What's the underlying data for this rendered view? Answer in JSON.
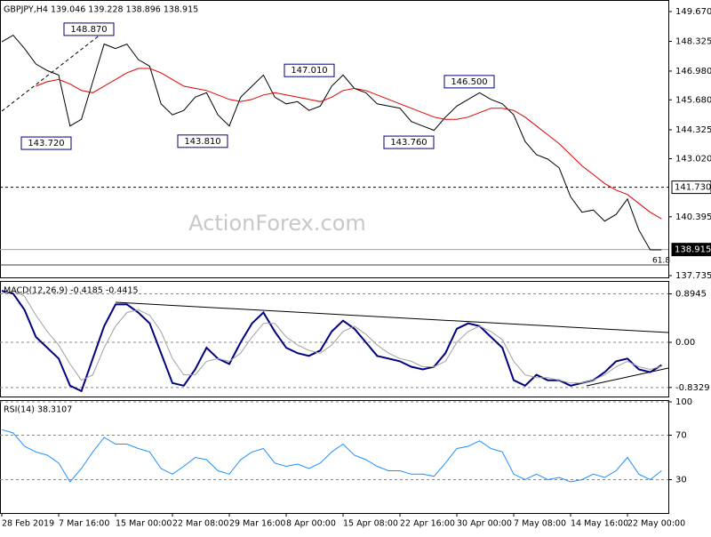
{
  "chart_data": [
    {
      "type": "line",
      "title": "GBPJPY,H4  139.046 139.228 138.896 138.915",
      "watermark": "ActionForex.com",
      "categories": [
        "28 Feb 2019",
        null,
        null,
        null,
        null,
        "7 Mar 16:00",
        null,
        null,
        null,
        null,
        "15 Mar 00:00",
        null,
        null,
        null,
        null,
        "22 Mar 08:00",
        null,
        null,
        null,
        null,
        "29 Mar 16:00",
        null,
        null,
        null,
        null,
        "8 Apr 00:00",
        null,
        null,
        null,
        null,
        "15 Apr 08:00",
        null,
        null,
        null,
        null,
        "22 Apr 16:00",
        null,
        null,
        null,
        null,
        "30 Apr 00:00",
        null,
        null,
        null,
        null,
        "7 May 08:00",
        null,
        null,
        null,
        null,
        "14 May 16:00",
        null,
        null,
        null,
        null,
        "22 May 00:00",
        null,
        null,
        null
      ],
      "series": [
        {
          "color": "#000000",
          "values": [
            148.3,
            148.6,
            148.0,
            147.3,
            147.0,
            146.8,
            144.5,
            144.8,
            146.5,
            148.2,
            148.0,
            148.2,
            147.5,
            147.2,
            145.5,
            145.0,
            145.2,
            145.8,
            146.0,
            145.0,
            144.5,
            145.8,
            146.3,
            146.8,
            145.8,
            145.5,
            145.6,
            145.2,
            145.4,
            146.3,
            146.8,
            146.2,
            146.0,
            145.5,
            145.4,
            145.3,
            144.7,
            144.5,
            144.3,
            144.9,
            145.4,
            145.7,
            146.0,
            145.7,
            145.5,
            145.0,
            143.8,
            143.2,
            143.0,
            142.6,
            141.3,
            140.6,
            140.7,
            140.2,
            140.5,
            141.2,
            139.8,
            138.9,
            138.9
          ]
        },
        {
          "color": "#e00000",
          "values": [
            null,
            null,
            null,
            146.3,
            146.5,
            146.6,
            146.4,
            146.1,
            146.0,
            146.3,
            146.6,
            146.9,
            147.1,
            147.1,
            146.9,
            146.6,
            146.3,
            146.2,
            146.1,
            145.9,
            145.7,
            145.6,
            145.7,
            145.9,
            146.0,
            145.9,
            145.8,
            145.7,
            145.6,
            145.8,
            146.1,
            146.2,
            146.1,
            145.9,
            145.7,
            145.5,
            145.3,
            145.1,
            144.9,
            144.8,
            144.8,
            144.9,
            145.1,
            145.3,
            145.3,
            145.2,
            144.9,
            144.5,
            144.1,
            143.7,
            143.2,
            142.7,
            142.3,
            141.9,
            141.6,
            141.4,
            141.0,
            140.6,
            140.3
          ]
        }
      ],
      "ylim": [
        137.655,
        150.112
      ],
      "yticks": [
        {
          "value": 149.67,
          "label": "149.670"
        },
        148.325,
        {
          "value": 146.98,
          "label": "146.980"
        },
        {
          "value": 145.68,
          "label": "145.680"
        },
        144.325,
        {
          "value": 143.02,
          "label": "143.020"
        },
        140.395,
        137.735
      ],
      "grid": false,
      "annotations": [
        {
          "value": 148.87,
          "label": "148.870"
        },
        {
          "value": 143.72,
          "label": "143.720"
        },
        {
          "value": 143.81,
          "label": "143.810"
        },
        {
          "value": 147.01,
          "label": "147.010"
        },
        {
          "value": 143.76,
          "label": "143.760"
        },
        {
          "value": 146.5,
          "label": "146.500"
        }
      ],
      "levels": [
        {
          "value": 141.73,
          "label": "141.730"
        },
        {
          "value": 138.915,
          "label": "138.915"
        }
      ],
      "fib": {
        "value": 138.22,
        "label": "61.8"
      }
    },
    {
      "type": "line",
      "title": "MACD(12,26,9) -0.4185 -0.4415",
      "series": [
        {
          "color": "#000080",
          "values": [
            0.95,
            0.9,
            0.6,
            0.1,
            -0.1,
            -0.3,
            -0.8,
            -0.9,
            -0.3,
            0.3,
            0.7,
            0.7,
            0.55,
            0.35,
            -0.2,
            -0.75,
            -0.8,
            -0.5,
            -0.1,
            -0.3,
            -0.4,
            0.0,
            0.35,
            0.55,
            0.2,
            -0.1,
            -0.2,
            -0.25,
            -0.15,
            0.2,
            0.4,
            0.25,
            0.0,
            -0.25,
            -0.3,
            -0.35,
            -0.45,
            -0.5,
            -0.45,
            -0.2,
            0.25,
            0.35,
            0.3,
            0.1,
            -0.1,
            -0.7,
            -0.8,
            -0.6,
            -0.7,
            -0.7,
            -0.8,
            -0.75,
            -0.7,
            -0.55,
            -0.35,
            -0.3,
            -0.5,
            -0.55,
            -0.42
          ]
        },
        {
          "color": "#a0a0a0",
          "values": [
            0.9,
            0.95,
            0.85,
            0.5,
            0.2,
            -0.05,
            -0.4,
            -0.7,
            -0.6,
            -0.1,
            0.3,
            0.55,
            0.6,
            0.5,
            0.2,
            -0.3,
            -0.6,
            -0.6,
            -0.35,
            -0.3,
            -0.35,
            -0.2,
            0.1,
            0.35,
            0.35,
            0.1,
            -0.05,
            -0.15,
            -0.2,
            -0.05,
            0.2,
            0.3,
            0.15,
            -0.05,
            -0.2,
            -0.3,
            -0.35,
            -0.45,
            -0.45,
            -0.35,
            0.0,
            0.2,
            0.3,
            0.2,
            0.05,
            -0.35,
            -0.6,
            -0.65,
            -0.65,
            -0.7,
            -0.75,
            -0.75,
            -0.7,
            -0.6,
            -0.45,
            -0.35,
            -0.45,
            -0.5,
            -0.44
          ]
        }
      ],
      "ylim": [
        -1.0,
        1.1
      ],
      "yticks": [
        0.8945,
        {
          "value": 0,
          "label": "0.00"
        },
        -0.8329
      ],
      "grid": true
    },
    {
      "type": "line",
      "title": "RSI(14) 38.3107",
      "series": [
        {
          "color": "#1e90ff",
          "values": [
            75,
            72,
            60,
            55,
            52,
            45,
            28,
            40,
            55,
            68,
            62,
            62,
            58,
            55,
            40,
            35,
            42,
            50,
            48,
            38,
            35,
            48,
            55,
            58,
            45,
            42,
            44,
            40,
            45,
            55,
            62,
            52,
            48,
            42,
            38,
            38,
            35,
            35,
            33,
            45,
            58,
            60,
            65,
            58,
            55,
            35,
            30,
            35,
            30,
            32,
            28,
            30,
            35,
            32,
            38,
            50,
            35,
            30,
            38
          ]
        }
      ],
      "ylim": [
        0,
        100
      ],
      "yticks": [
        100,
        70,
        30
      ],
      "grid": true
    }
  ]
}
